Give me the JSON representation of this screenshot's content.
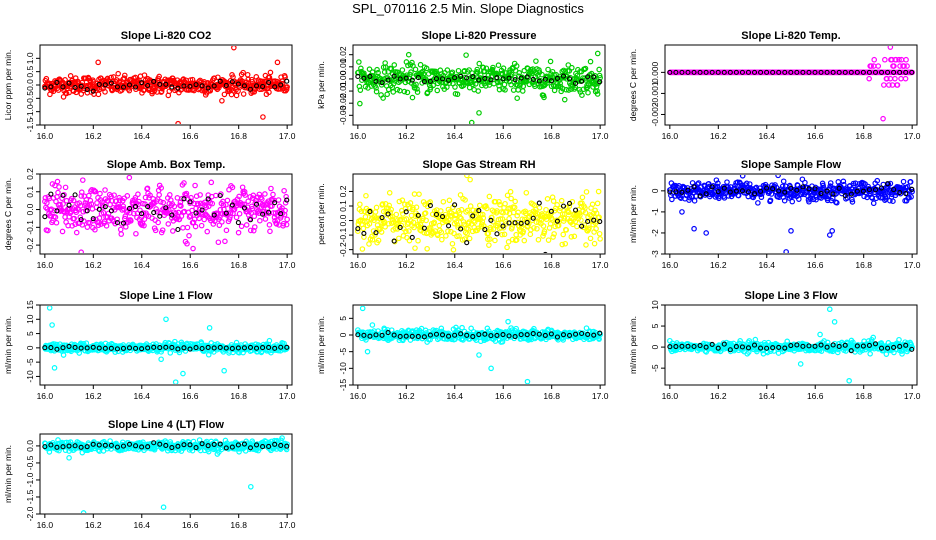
{
  "title": "SPL_070116  2.5 Min. Slope Diagnostics",
  "chart_data": [
    {
      "type": "scatter",
      "title": "Slope Li-820 CO2",
      "ylabel": "Licor ppm per min.",
      "xlim": [
        15.98,
        17.02
      ],
      "ylim": [
        -1.5,
        1.5
      ],
      "xticks": [
        "16.0",
        "16.2",
        "16.4",
        "16.6",
        "16.8",
        "17.0"
      ],
      "yticks": [
        -1.5,
        -1.0,
        -0.5,
        0.0,
        0.5,
        1.0
      ],
      "ytick_labels": [
        "-1.5",
        "-1.0",
        "-0.5",
        "0.0",
        "0.5",
        "1.0"
      ],
      "color": "#ff0000",
      "n": 480,
      "spread": 0.17,
      "outliers": [
        [
          16.55,
          -1.45
        ],
        [
          16.78,
          1.4
        ],
        [
          16.9,
          -1.2
        ],
        [
          16.96,
          0.85
        ],
        [
          16.22,
          0.85
        ]
      ],
      "black_spread": 0.08,
      "step": 0.0104
    },
    {
      "type": "scatter",
      "title": "Slope Li-820 Pressure",
      "ylabel": "kPa per min.",
      "xlim": [
        15.98,
        17.02
      ],
      "ylim": [
        -0.038,
        0.028
      ],
      "xticks": [
        "16.0",
        "16.2",
        "16.4",
        "16.6",
        "16.8",
        "17.0"
      ],
      "yticks": [
        -0.03,
        -0.02,
        -0.01,
        0.0,
        0.01,
        0.02
      ],
      "ytick_labels": [
        "-0.03",
        "-0.02",
        "-0.01",
        "0.00",
        "0.01",
        "0.02"
      ],
      "color": "#00cc00",
      "n": 480,
      "spread": 0.006,
      "outliers": [
        [
          16.47,
          -0.036
        ],
        [
          16.21,
          0.02
        ],
        [
          16.99,
          0.021
        ],
        [
          16.5,
          -0.028
        ]
      ],
      "black_spread": 0.0015,
      "step": 0.0104
    },
    {
      "type": "scatter",
      "title": "Slope Li-820 Temp.",
      "ylabel": "degrees C per min.",
      "xlim": [
        15.98,
        17.02
      ],
      "ylim": [
        -0.0025,
        0.0013
      ],
      "xticks": [
        "16.0",
        "16.2",
        "16.4",
        "16.6",
        "16.8",
        "17.0"
      ],
      "yticks": [
        -0.002,
        -0.001,
        0.0
      ],
      "ytick_labels": [
        "-0.002",
        "-0.001",
        "0.000"
      ],
      "color": "#ff00ff",
      "n": 480,
      "spread": 0.0,
      "band_x": [
        16.82,
        16.98
      ],
      "outliers": [
        [
          16.91,
          0.0012
        ],
        [
          16.88,
          -0.0022
        ]
      ],
      "black_spread": 0.0,
      "step": 0.0104
    },
    {
      "type": "scatter",
      "title": "Slope Amb. Box Temp.",
      "ylabel": "degrees C per min.",
      "xlim": [
        15.98,
        17.02
      ],
      "ylim": [
        -0.25,
        0.2
      ],
      "xticks": [
        "16.0",
        "16.2",
        "16.4",
        "16.6",
        "16.8",
        "17.0"
      ],
      "yticks": [
        -0.2,
        -0.1,
        0.0,
        0.1,
        0.2
      ],
      "ytick_labels": [
        "-0.2",
        "-0.1",
        "0.0",
        "0.1",
        "0.2"
      ],
      "color": "#ff00ff",
      "n": 480,
      "spread": 0.065,
      "outliers": [
        [
          16.15,
          -0.24
        ]
      ],
      "black_spread": 0.05,
      "step": 0.0104
    },
    {
      "type": "scatter",
      "title": "Slope Gas Stream RH",
      "ylabel": "percent per min.",
      "xlim": [
        15.98,
        17.02
      ],
      "ylim": [
        -0.23,
        0.32
      ],
      "xticks": [
        "16.0",
        "16.2",
        "16.4",
        "16.6",
        "16.8",
        "17.0"
      ],
      "yticks": [
        -0.2,
        -0.1,
        0.0,
        0.1,
        0.2
      ],
      "ytick_labels": [
        "-0.2",
        "-0.1",
        "0.0",
        "0.1",
        "0.2"
      ],
      "color": "#ffff00",
      "n": 480,
      "spread": 0.08,
      "outliers": [
        [
          16.45,
          0.31
        ]
      ],
      "black_spread": 0.07,
      "step": 0.0104
    },
    {
      "type": "scatter",
      "title": "Slope Sample Flow",
      "ylabel": "ml/min per min.",
      "xlim": [
        15.98,
        17.02
      ],
      "ylim": [
        -3,
        0.8
      ],
      "xticks": [
        "16.0",
        "16.2",
        "16.4",
        "16.6",
        "16.8",
        "17.0"
      ],
      "yticks": [
        -3,
        -2,
        -1,
        0
      ],
      "ytick_labels": [
        "-3",
        "-2",
        "-1",
        "0"
      ],
      "color": "#0000ff",
      "n": 480,
      "spread": 0.22,
      "outliers": [
        [
          16.48,
          -2.9
        ],
        [
          16.5,
          -1.9
        ],
        [
          16.66,
          -2.1
        ],
        [
          16.1,
          -1.8
        ],
        [
          16.05,
          -1.0
        ],
        [
          16.15,
          -2.0
        ],
        [
          16.67,
          -1.9
        ]
      ],
      "black_spread": 0.1,
      "step": 0.0104
    },
    {
      "type": "scatter",
      "title": "Slope Line 1 Flow",
      "ylabel": "ml/min per min.",
      "xlim": [
        15.98,
        17.02
      ],
      "ylim": [
        -13,
        15
      ],
      "xticks": [
        "16.0",
        "16.2",
        "16.4",
        "16.6",
        "16.8",
        "17.0"
      ],
      "yticks": [
        -10,
        -5,
        0,
        5,
        10,
        15
      ],
      "ytick_labels": [
        "-10",
        "-5",
        "0",
        "5",
        "10",
        "15"
      ],
      "color": "#00ffff",
      "n": 480,
      "spread": 0.8,
      "outliers": [
        [
          16.02,
          14
        ],
        [
          16.03,
          8
        ],
        [
          16.04,
          -7
        ],
        [
          16.54,
          -12
        ],
        [
          16.5,
          10
        ],
        [
          16.57,
          -9
        ],
        [
          16.68,
          7
        ],
        [
          16.74,
          -8
        ],
        [
          16.48,
          -4
        ]
      ],
      "black_spread": 0.25,
      "step": 0.0104
    },
    {
      "type": "scatter",
      "title": "Slope Line 2 Flow",
      "ylabel": "ml/min per min.",
      "xlim": [
        15.98,
        17.02
      ],
      "ylim": [
        -15,
        9
      ],
      "xticks": [
        "16.0",
        "16.2",
        "16.4",
        "16.6",
        "16.8",
        "17.0"
      ],
      "yticks": [
        -15,
        -10,
        -5,
        0,
        5
      ],
      "ytick_labels": [
        "-15",
        "-10",
        "-5",
        "0",
        "5"
      ],
      "color": "#00ffff",
      "n": 480,
      "spread": 0.8,
      "outliers": [
        [
          16.02,
          8
        ],
        [
          16.04,
          -5
        ],
        [
          16.06,
          3
        ],
        [
          16.55,
          -10
        ],
        [
          16.7,
          -14
        ],
        [
          16.5,
          -6
        ],
        [
          16.62,
          4
        ]
      ],
      "black_spread": 0.4,
      "step": 0.0104
    },
    {
      "type": "scatter",
      "title": "Slope Line 3 Flow",
      "ylabel": "ml/min per min.",
      "xlim": [
        15.98,
        17.02
      ],
      "ylim": [
        -9,
        10
      ],
      "xticks": [
        "16.0",
        "16.2",
        "16.4",
        "16.6",
        "16.8",
        "17.0"
      ],
      "yticks": [
        -5,
        0,
        5,
        10
      ],
      "ytick_labels": [
        "-5",
        "0",
        "5",
        "10"
      ],
      "color": "#00ffff",
      "n": 480,
      "spread": 0.6,
      "outliers": [
        [
          16.66,
          9
        ],
        [
          16.74,
          -8
        ],
        [
          16.68,
          6
        ],
        [
          16.54,
          -4
        ],
        [
          16.62,
          3
        ]
      ],
      "black_spread": 0.4,
      "step": 0.0104
    },
    {
      "type": "scatter",
      "title": "Slope Line 4 (LT) Flow",
      "ylabel": "ml/min per min.",
      "xlim": [
        15.98,
        17.02
      ],
      "ylim": [
        -2,
        0.35
      ],
      "xticks": [
        "16.0",
        "16.2",
        "16.4",
        "16.6",
        "16.8",
        "17.0"
      ],
      "yticks": [
        -2.0,
        -1.5,
        -1.0,
        -0.5,
        0.0
      ],
      "ytick_labels": [
        "-2.0",
        "-1.5",
        "-1.0",
        "-0.5",
        "0.0"
      ],
      "color": "#00ffff",
      "n": 480,
      "spread": 0.07,
      "outliers": [
        [
          16.16,
          -1.97
        ],
        [
          16.49,
          -1.8
        ],
        [
          16.85,
          -1.2
        ],
        [
          16.1,
          -0.35
        ]
      ],
      "black_spread": 0.04,
      "step": 0.0104
    }
  ]
}
